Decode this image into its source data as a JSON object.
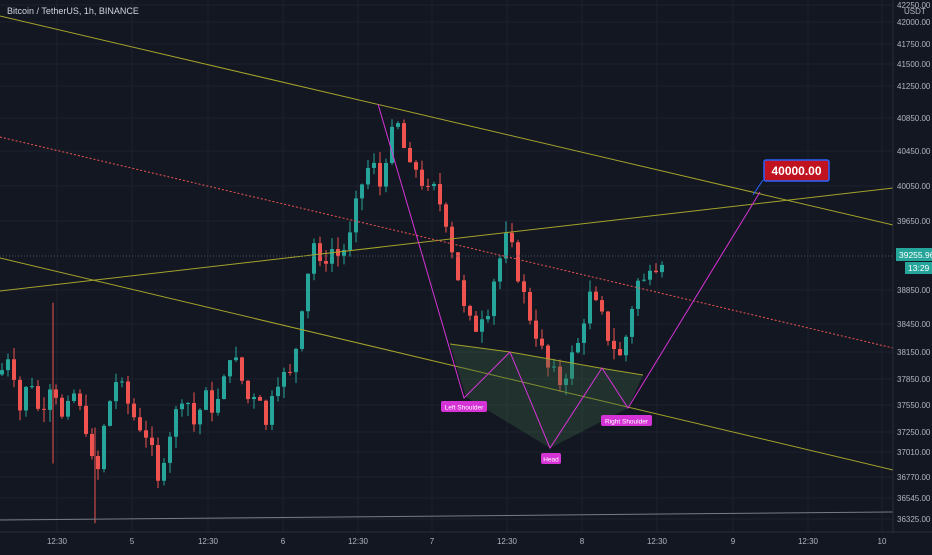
{
  "header": {
    "symbol_title": "Bitcoin / TetherUS, 1h, BINANCE"
  },
  "colors": {
    "background": "#131722",
    "bull": "#26a69a",
    "bear": "#ef5350",
    "trendline": "#a3a32a",
    "pattern": "#d633d6",
    "grid": "#1e222d",
    "axis_text": "#b2b5be",
    "target_box": "#c1121f",
    "price_tag": "#26a69a"
  },
  "y_axis": {
    "unit": "USDT",
    "ticks": [
      42250,
      42000,
      41750,
      41500,
      41250,
      40850,
      40450,
      40050,
      39650,
      38850,
      38450,
      38150,
      37850,
      37550,
      37250,
      37010,
      36770,
      36545,
      36325
    ],
    "tick_labels": [
      "42250.00",
      "42000.00",
      "41750.00",
      "41500.00",
      "41250.00",
      "40850.00",
      "40450.00",
      "40050.00",
      "39650.00",
      "38850.00",
      "38450.00",
      "38150.00",
      "37850.00",
      "37550.00",
      "37250.00",
      "37010.00",
      "36770.00",
      "36545.00",
      "36325.00"
    ]
  },
  "x_axis": {
    "tick_labels": [
      "12:30",
      "5",
      "12:30",
      "6",
      "12:30",
      "7",
      "12:30",
      "8",
      "12:30",
      "9",
      "12:30",
      "10"
    ]
  },
  "last_price": {
    "value": "39255.96",
    "countdown": "13:29"
  },
  "target": {
    "value": "40000.00"
  },
  "annotations": {
    "left_shoulder": "Left Shoulder",
    "head": "Head",
    "right_shoulder": "Right Shoulder"
  },
  "chart_data": {
    "type": "candlestick",
    "title": "Bitcoin / TetherUS, 1h, BINANCE",
    "ylabel": "USDT",
    "ylim": [
      36250,
      42350
    ],
    "pattern": "inverse head and shoulders",
    "target_price": 40000.0,
    "last_price": 39255.96,
    "key_levels": {
      "left_shoulder": 37650,
      "head": 37100,
      "right_shoulder": 37500,
      "neckline": 38100,
      "swing_high": 41100
    }
  }
}
